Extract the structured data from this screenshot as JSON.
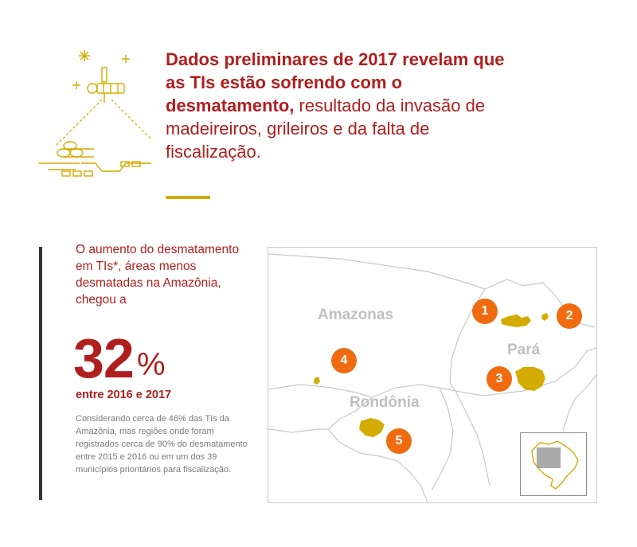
{
  "header": {
    "headline_bold": "Dados preliminares de 2017 revelam que as TIs estão sofrendo com o desmatamento,",
    "headline_rest": " resultado da invasão de madeireiros, grileiros e da falta de fiscalização.",
    "illustration_icon": "satellite-over-logs-icon"
  },
  "stats": {
    "intro": "O aumento do desmatamento em TIs*, áreas menos desmatadas na Amazônia, chegou a",
    "value": "32",
    "unit": "%",
    "period": "entre 2016 e 2017",
    "note": "Considerando cerca de 46% das TIs da Amazônia, mas regiões onde foram registrados cerca de 90% do desmatamento entre 2015 e 2016 ou em um dos 39 municípios prioritários para fiscalização."
  },
  "map": {
    "labels": {
      "amazonas": "Amazonas",
      "para": "Pará",
      "rondonia": "Rondônia"
    },
    "markers": [
      "1",
      "2",
      "3",
      "4",
      "5"
    ],
    "colors": {
      "marker": "#f06a0f",
      "area": "#d4ab00",
      "border": "#c8c8c8",
      "label": "#c0c0c0"
    },
    "inset_icon": "brazil-locator-icon"
  },
  "colors": {
    "accent": "#b01e1e",
    "gold": "#d4ab00",
    "bar": "#333333"
  }
}
